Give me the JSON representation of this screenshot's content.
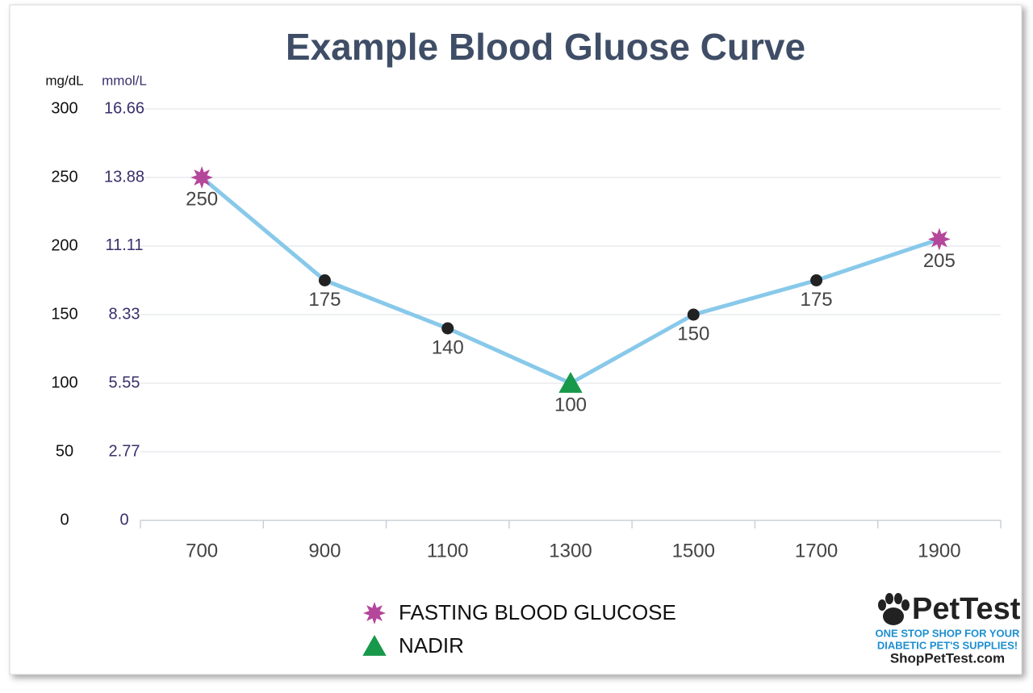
{
  "chart_data": {
    "type": "line",
    "title": "Example Blood Gluose Curve",
    "y_label": "mg/dL",
    "y2_label": "mmol/L",
    "categories": [
      "700",
      "900",
      "1100",
      "1300",
      "1500",
      "1700",
      "1900"
    ],
    "series": [
      {
        "values": [
          250,
          175,
          140,
          100,
          150,
          175,
          205
        ],
        "color": "#88c9ea",
        "markers": [
          "star",
          "circle",
          "circle",
          "triangle",
          "circle",
          "circle",
          "star"
        ]
      }
    ],
    "ylim": [
      0,
      300
    ],
    "yticks": [
      0,
      50,
      100,
      150,
      200,
      250,
      300
    ],
    "y2lim": [
      0,
      16.66
    ],
    "y2ticks": [
      0,
      2.77,
      5.55,
      8.33,
      11.11,
      13.88,
      16.66
    ],
    "grid": true,
    "marker_colors": {
      "star": "#b5479b",
      "triangle": "#17984a",
      "circle": "#222222"
    },
    "legend": [
      {
        "name": "FASTING BLOOD GLUCOSE",
        "marker": "star"
      },
      {
        "name": "NADIR",
        "marker": "triangle"
      }
    ]
  },
  "logo": {
    "brand": "PetTest",
    "tagline": [
      "ONE STOP SHOP FOR YOUR",
      "DIABETIC PET'S SUPPLIES!"
    ],
    "site": "ShopPetTest.com"
  }
}
